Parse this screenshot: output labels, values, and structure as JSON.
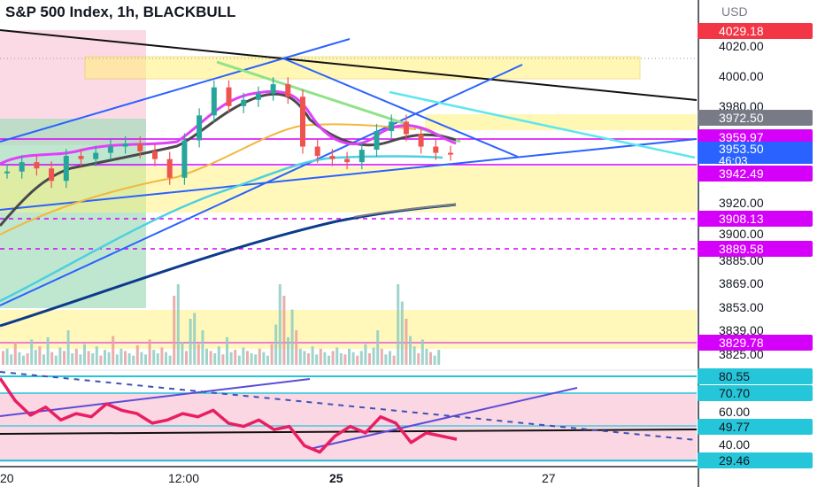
{
  "header": {
    "symbol": "S&P 500 Index",
    "interval": "1h",
    "exchange": "BLACKBULL",
    "currency": "USD"
  },
  "colors": {
    "price_up": "#26a69a",
    "price_down": "#ef5350",
    "ma_magenta": "#e040fb",
    "ma_dark": "#4a4a4a",
    "ma_orange": "#f0b840",
    "ma_cyan": "#4dd0e1",
    "ma_navy": "#0d3b8c",
    "ma_gray": "#7f7f7f",
    "trend_blue": "#2962ff",
    "zone_yellow": "#fff176",
    "zone_pink": "#f8bbd0",
    "zone_green": "#b9e3b0",
    "level_magenta": "#d500f9",
    "osc_line": "#e91e63",
    "osc_cyan": "#26c6da",
    "badge_current": "#2962ff",
    "badge_red": "#f23645",
    "badge_gray": "#787b86"
  },
  "price_axis": {
    "ticks": [
      "4020.00",
      "4000.00",
      "3980.00",
      "3920.00",
      "3900.00",
      "3885.00",
      "3869.00",
      "3853.00",
      "3839.00",
      "3825.00"
    ],
    "badges": {
      "top": "4029.18",
      "resist": "3972.50",
      "level1": "3959.97",
      "current_price": "3953.50",
      "countdown": "46:03",
      "level2": "3942.49",
      "level3": "3908.13",
      "level4": "3889.58",
      "level5": "3829.78"
    }
  },
  "oscillator_axis": {
    "ticks": [
      "60.00",
      "40.00"
    ],
    "badges": {
      "top": "80.55",
      "upper": "70.70",
      "mid": "49.77",
      "low": "29.46"
    }
  },
  "time_axis": {
    "labels": [
      "20",
      "12:00",
      "25",
      "27"
    ]
  },
  "chart_data": {
    "type": "line",
    "title": "S&P 500 Index, 1h, BLACKBULL",
    "price_series": {
      "name": "",
      "x": [
        0,
        4,
        8,
        12,
        16,
        20,
        24,
        28,
        32,
        36,
        40,
        44,
        48,
        52,
        56,
        60,
        64,
        68,
        72,
        76,
        80,
        84,
        88,
        92,
        96,
        100,
        104,
        108,
        112,
        116,
        120
      ],
      "values": [
        3942,
        3948,
        3944,
        3936,
        3952,
        3950,
        3954,
        3958,
        3960,
        3955,
        3950,
        3938,
        3962,
        3978,
        3996,
        3984,
        3988,
        3992,
        3998,
        3990,
        3958,
        3952,
        3950,
        3948,
        3956,
        3968,
        3974,
        3966,
        3958,
        3954,
        3953.5
      ]
    },
    "ylim": [
      3820,
      4035
    ],
    "oscillator": {
      "name": "",
      "values": [
        80,
        66,
        57,
        62,
        54,
        58,
        56,
        64,
        60,
        58,
        52,
        54,
        58,
        56,
        60,
        52,
        50,
        54,
        48,
        50,
        38,
        34,
        44,
        50,
        46,
        56,
        52,
        40,
        46,
        44,
        42
      ],
      "levels": [
        80.55,
        70.7,
        49.77,
        29.46
      ],
      "ylim": [
        25,
        85
      ]
    }
  }
}
